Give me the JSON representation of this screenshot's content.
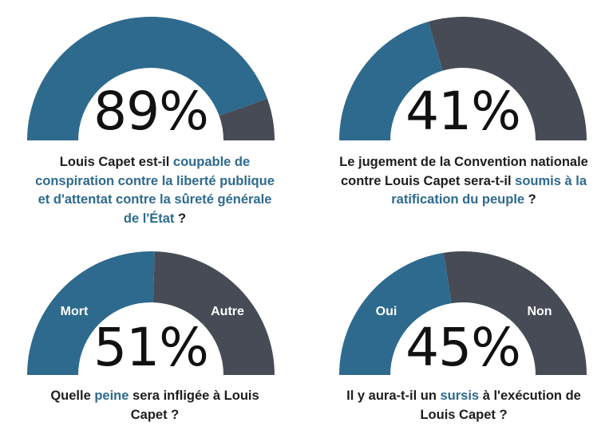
{
  "colors": {
    "blue": "#2e6a8e",
    "gray": "#474b55",
    "text": "#1d1d1d",
    "highlight": "#2e6a8e"
  },
  "chart_data": [
    {
      "type": "gauge",
      "percent_label": "89%",
      "value": 89,
      "segments": [
        {
          "label": "",
          "value": 89,
          "color": "#2e6a8e"
        },
        {
          "label": "",
          "value": 11,
          "color": "#474b55"
        }
      ],
      "question": {
        "before": "Louis Capet est-il ",
        "highlight": "coupable de conspiration contre la liberté publique et d'attentat contre la sûreté générale de l'État",
        "after": " ?"
      }
    },
    {
      "type": "gauge",
      "percent_label": "41%",
      "value": 41,
      "segments": [
        {
          "label": "",
          "value": 41,
          "color": "#2e6a8e"
        },
        {
          "label": "",
          "value": 59,
          "color": "#474b55"
        }
      ],
      "question": {
        "before": "Le jugement de la Convention nationale contre Louis Capet sera-t-il ",
        "highlight": "soumis à la ratification du peuple",
        "after": " ?"
      }
    },
    {
      "type": "gauge",
      "percent_label": "51%",
      "value": 51,
      "segments": [
        {
          "label": "Mort",
          "value": 51,
          "color": "#2e6a8e"
        },
        {
          "label": "Autre",
          "value": 49,
          "color": "#474b55"
        }
      ],
      "question": {
        "before": "Quelle ",
        "highlight": "peine",
        "after": " sera infligée à Louis Capet ?"
      }
    },
    {
      "type": "gauge",
      "percent_label": "45%",
      "value": 45,
      "segments": [
        {
          "label": "Oui",
          "value": 45,
          "color": "#2e6a8e"
        },
        {
          "label": "Non",
          "value": 55,
          "color": "#474b55"
        }
      ],
      "question": {
        "before": "Il y aura-t-il un ",
        "highlight": "sursis",
        "after": " à l'exécution de Louis Capet ?"
      }
    }
  ]
}
